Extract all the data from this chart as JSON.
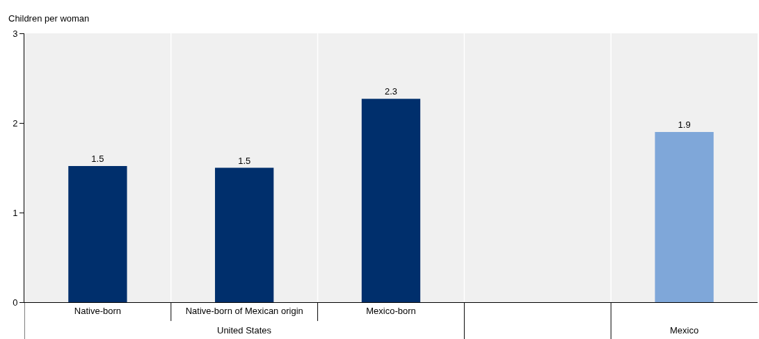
{
  "chart_data": {
    "type": "bar",
    "ylabel": "Children per woman",
    "categories": [
      "Native-born",
      "Native-born of Mexican origin",
      "Mexico-born",
      null,
      null
    ],
    "values": [
      1.52,
      1.5,
      2.27,
      null,
      1.9
    ],
    "colors": [
      "#002f6c",
      "#002f6c",
      "#002f6c",
      "#002f6c",
      "#7fa7d9"
    ],
    "value_labels": [
      "1.5",
      "1.5",
      "2.3",
      null,
      "1.9"
    ],
    "annotations": [
      "United States",
      "Mexico"
    ],
    "ylim": [
      0,
      3
    ],
    "yticks": [
      0,
      1,
      2,
      3
    ],
    "grid": "x",
    "legend": false
  }
}
